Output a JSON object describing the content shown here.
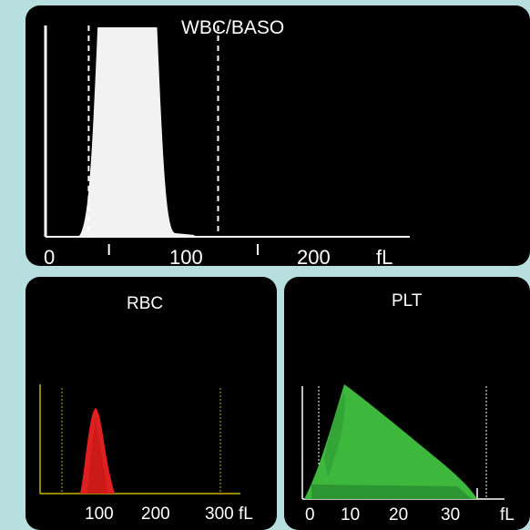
{
  "chart_data": [
    {
      "type": "area",
      "title": "WBC/BASO",
      "unit_label": "fL",
      "x_tick_labels": [
        "0",
        "100",
        "200"
      ],
      "x_range": [
        0,
        300
      ],
      "discriminators": [
        18,
        105
      ],
      "fill_color": "#f2f2f2",
      "line_color": "#ffffff",
      "peak_x": 55,
      "clipped_peak": true
    },
    {
      "type": "area",
      "title": "RBC",
      "unit_label": "fL",
      "x_tick_labels": [
        "100",
        "200",
        "300"
      ],
      "x_range": [
        0,
        350
      ],
      "discriminators": [
        25,
        295
      ],
      "fill_color": "#e0201f",
      "axis_color": "#c8b400",
      "peak_x": 87
    },
    {
      "type": "area",
      "title": "PLT",
      "unit_label": "fL",
      "x_tick_labels": [
        "0",
        "10",
        "20",
        "30"
      ],
      "x_range": [
        0,
        40
      ],
      "discriminators": [
        2,
        36
      ],
      "fill_color": "#3db83d",
      "axis_color": "#ffffff",
      "peak_x": 7
    }
  ]
}
